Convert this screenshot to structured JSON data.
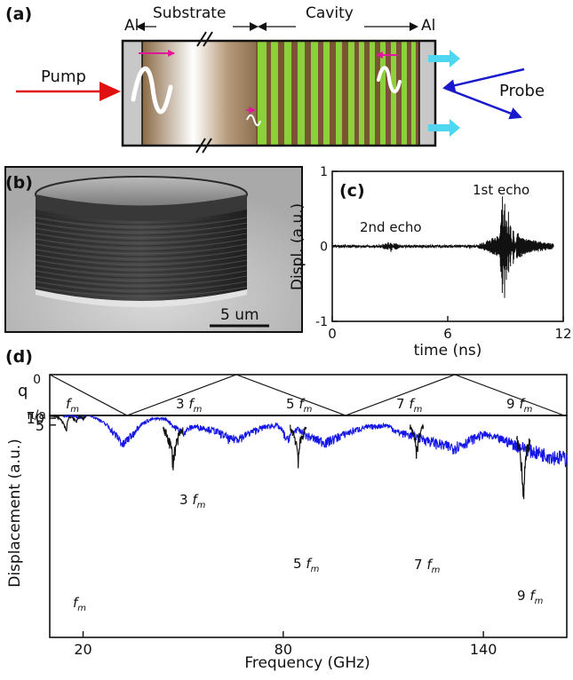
{
  "panels": {
    "a": {
      "tag": "(a)",
      "label_al_left": "Al",
      "label_substrate": "Substrate",
      "label_cavity": "Cavity",
      "label_al_right": "Al",
      "label_pump": "Pump",
      "label_probe": "Probe"
    },
    "b": {
      "tag": "(b)",
      "scale_label": "5 um"
    },
    "c": {
      "tag": "(c)",
      "echo1": "1st echo",
      "echo2": "2nd echo"
    },
    "d": {
      "tag": "(d)",
      "q_label": "q",
      "q_tick_top": "0",
      "q_tick_bottom": "π/a",
      "harmonic_base": "f",
      "harmonic_sub": "m",
      "band_labels": [
        "",
        "3",
        "5",
        "7",
        "9"
      ],
      "peak_labels": [
        "",
        "3",
        "5",
        "7",
        "9"
      ]
    }
  },
  "chart_data": [
    {
      "type": "line",
      "panel": "c",
      "xlabel": "time (ns)",
      "ylabel": "Displ. (a.u.)",
      "xlim": [
        0,
        12
      ],
      "ylim": [
        -1,
        1
      ],
      "xticks": [
        "0",
        "6",
        "12"
      ],
      "yticks": [
        "1",
        "0",
        "-1"
      ],
      "series": [
        {
          "color": "#111111",
          "x": [
            0,
            2.5,
            2.9,
            3.05,
            3.2,
            3.6,
            7.5,
            8.7,
            8.85,
            8.95,
            9.05,
            9.15,
            9.25,
            9.4,
            9.6,
            10.0,
            10.5,
            11.0,
            11.5
          ],
          "y": [
            0,
            0,
            0.05,
            -0.07,
            0.04,
            0,
            0,
            0.15,
            0.85,
            -0.9,
            0.7,
            -0.55,
            0.35,
            -0.25,
            0.18,
            0.1,
            0.07,
            0.05,
            0.03
          ]
        }
      ]
    },
    {
      "type": "line",
      "panel": "d-spectrum",
      "xlabel": "Frequency (GHz)",
      "ylabel": "Displacement (a.u.)",
      "xlim": [
        10,
        165
      ],
      "ylim": [
        0.3,
        17
      ],
      "yscale": "reciprocal",
      "xticks": [
        "20",
        "80",
        "140"
      ],
      "yticks": [
        "10",
        "5"
      ],
      "series": [
        {
          "name": "",
          "color": "#1515e6",
          "x": [
            14,
            16,
            19,
            21,
            22,
            23,
            26,
            29,
            32,
            35,
            38,
            41,
            44,
            47,
            50,
            53,
            55,
            57,
            60,
            64,
            68,
            72,
            75,
            78,
            81,
            84,
            87,
            90,
            93,
            96,
            100,
            104,
            108,
            111,
            114,
            117,
            120,
            124,
            128,
            131,
            134,
            137,
            140,
            143,
            147,
            150,
            155,
            160,
            165
          ],
          "y": [
            14,
            16,
            10,
            16,
            17,
            12,
            6,
            3.2,
            2.0,
            3.0,
            5.8,
            9.0,
            9.8,
            4.5,
            3.2,
            4.5,
            4.3,
            4.0,
            3.4,
            2.4,
            2.7,
            3.7,
            4.5,
            5.0,
            2.3,
            3.8,
            2.8,
            2.4,
            2.2,
            2.6,
            3.3,
            4.2,
            4.6,
            5.0,
            3.3,
            3.0,
            2.7,
            2.3,
            2.0,
            1.9,
            2.1,
            2.5,
            3.0,
            2.6,
            2.3,
            2.0,
            1.7,
            1.55,
            1.45
          ]
        },
        {
          "name": "",
          "color": "#111111",
          "x": [
            10,
            12,
            13,
            14,
            15,
            16,
            17,
            18,
            19,
            20,
            21,
            22
          ],
          "y": [
            16,
            14,
            9,
            5.5,
            3.2,
            13,
            10,
            6,
            14,
            9,
            16,
            17
          ]
        }
      ]
    }
  ]
}
